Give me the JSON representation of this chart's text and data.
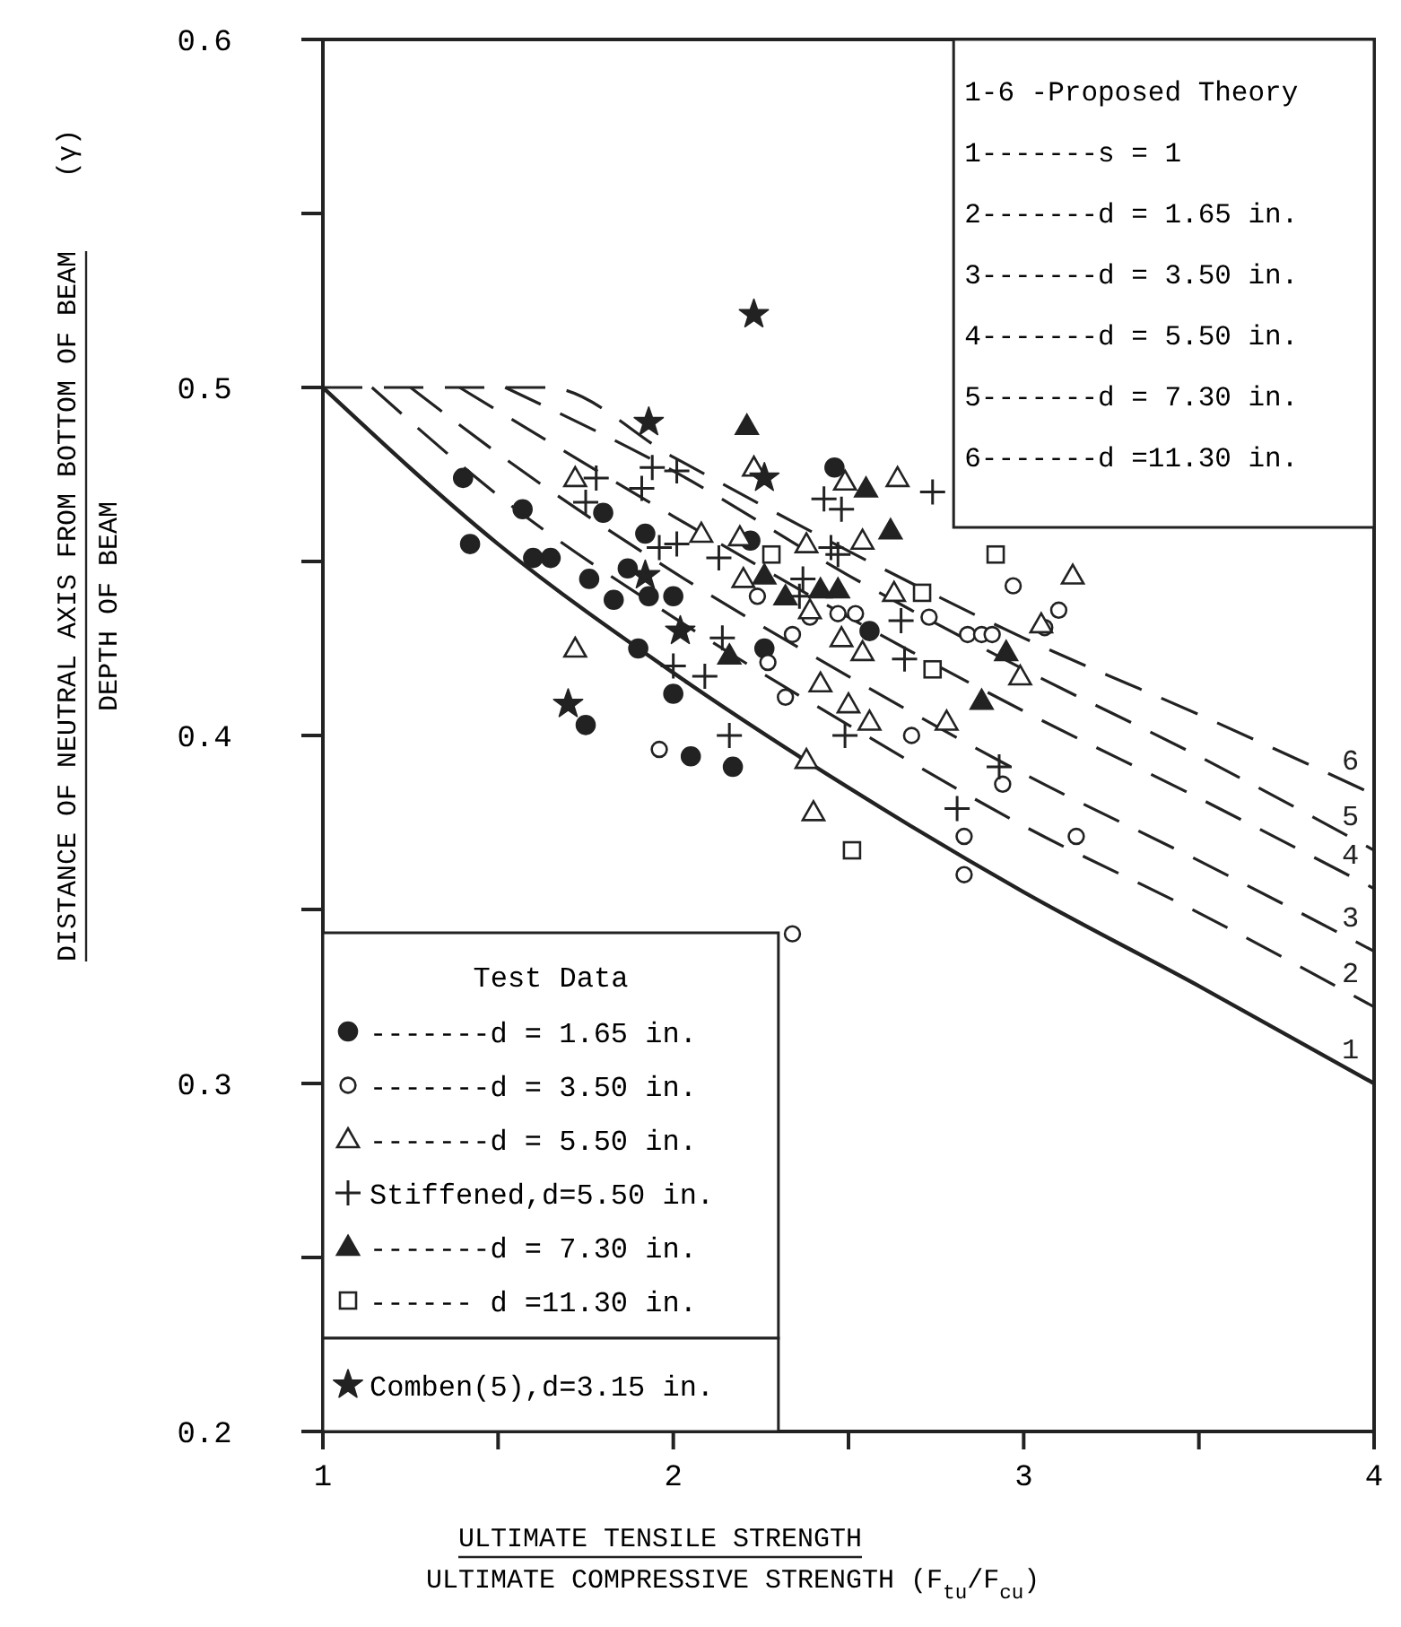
{
  "chart_data": {
    "type": "scatter",
    "xlabel": "ULTIMATE TENSILE STRENGTH\nULTIMATE COMPRESSIVE STRENGTH (F$_{tu}$/F$_{cu}$)",
    "ylabel": "DISTANCE OF NEUTRAL AXIS FROM BOTTOM OF BEAM\nDEPTH OF BEAM (γ)",
    "legend_title": "Test Data",
    "legend": "bottom left",
    "grid": false,
    "xlim": [
      1,
      4
    ],
    "ylim": [
      0.2,
      0.6
    ],
    "xticks": [
      1,
      {
        "value": 1.5,
        "label": null
      },
      2,
      {
        "value": 2.5,
        "label": null
      },
      3,
      {
        "value": 3.5,
        "label": null
      },
      4
    ],
    "yticks": [
      0.2,
      {
        "value": 0.25,
        "label": null
      },
      0.3,
      {
        "value": 0.35,
        "label": null
      },
      0.4,
      {
        "value": 0.45,
        "label": null
      },
      0.5,
      {
        "value": 0.55,
        "label": null
      },
      0.6
    ],
    "annotations": [
      "1-6 -Proposed Theory",
      "1-------s = 1",
      "2-------d = 1.65 in.",
      "3-------d = 3.50 in.",
      "4-------d = 5.50 in.",
      "5-------d = 7.30 in.",
      "6-------d =11.30 in."
    ],
    "series": [
      {
        "type": "line",
        "name": "1",
        "color": "#222222",
        "line_style": "solid",
        "marker": "none",
        "x": [
          1,
          1.5,
          2,
          2.5,
          3,
          3.5,
          4
        ],
        "values": [
          0.5,
          0.455,
          0.418,
          0.385,
          0.355,
          0.328,
          0.3
        ]
      },
      {
        "type": "line",
        "name": "2",
        "color": "#222222",
        "line_style": "dashed",
        "marker": "none",
        "x": [
          1.14,
          1.5,
          2,
          2.5,
          3,
          3.5,
          4
        ],
        "values": [
          0.5,
          0.469,
          0.434,
          0.403,
          0.374,
          0.349,
          0.322
        ]
      },
      {
        "type": "line",
        "name": "3",
        "color": "#222222",
        "line_style": "dashed",
        "marker": "none",
        "x": [
          1.25,
          1.5,
          2,
          2.5,
          3,
          3.5,
          4
        ],
        "values": [
          0.5,
          0.481,
          0.447,
          0.417,
          0.389,
          0.364,
          0.338
        ]
      },
      {
        "type": "line",
        "name": "4",
        "color": "#222222",
        "line_style": "dashed",
        "marker": "none",
        "x": [
          1.39,
          2,
          2.5,
          3,
          3.5,
          4
        ],
        "values": [
          0.5,
          0.463,
          0.434,
          0.407,
          0.382,
          0.356
        ]
      },
      {
        "type": "line",
        "name": "5",
        "color": "#222222",
        "line_style": "dashed",
        "marker": "none",
        "x": [
          1.52,
          2,
          2.5,
          3,
          3.5,
          4
        ],
        "values": [
          0.5,
          0.476,
          0.446,
          0.419,
          0.394,
          0.367
        ]
      },
      {
        "type": "line",
        "name": "6",
        "color": "#222222",
        "line_style": "dashed",
        "marker": "none",
        "x": [
          1,
          1.64,
          2,
          2.5,
          3,
          3.5,
          4
        ],
        "values": [
          0.5,
          0.5,
          0.48,
          0.453,
          0.428,
          0.406,
          0.383
        ]
      },
      {
        "name": "-------d = 1.65 in.",
        "color": "#222222",
        "marker": "circle",
        "x": [
          1.4,
          1.42,
          1.57,
          1.6,
          1.65,
          1.8,
          1.92,
          1.76,
          1.83,
          1.87,
          1.93,
          2.0,
          1.9,
          2.0,
          1.75,
          2.05,
          2.17,
          2.26,
          2.22,
          2.46,
          2.56
        ],
        "values": [
          0.474,
          0.455,
          0.465,
          0.451,
          0.451,
          0.464,
          0.458,
          0.445,
          0.439,
          0.448,
          0.44,
          0.44,
          0.425,
          0.412,
          0.403,
          0.394,
          0.391,
          0.425,
          0.456,
          0.477,
          0.43
        ]
      },
      {
        "name": "-------d = 3.50 in.",
        "color": "#ffffff",
        "marker": "circle",
        "x": [
          2.24,
          2.34,
          2.39,
          2.27,
          2.32,
          1.96,
          2.47,
          2.52,
          2.73,
          2.84,
          2.88,
          2.91,
          2.97,
          3.1,
          3.06,
          2.68,
          2.94,
          2.83,
          3.15,
          2.83,
          2.34
        ],
        "values": [
          0.44,
          0.429,
          0.434,
          0.421,
          0.411,
          0.396,
          0.435,
          0.435,
          0.434,
          0.429,
          0.429,
          0.429,
          0.443,
          0.436,
          0.431,
          0.4,
          0.386,
          0.371,
          0.371,
          0.36,
          0.343
        ]
      },
      {
        "name": "-------d = 5.50 in.",
        "color": "#ffffff",
        "marker": "triangle",
        "x": [
          1.72,
          2.08,
          2.19,
          2.2,
          1.72,
          2.42,
          2.38,
          2.4,
          2.23,
          2.38,
          2.49,
          2.64,
          2.54,
          2.39,
          2.48,
          2.54,
          2.63,
          2.5,
          2.56,
          2.78,
          2.99,
          3.05,
          3.14
        ],
        "values": [
          0.474,
          0.458,
          0.457,
          0.445,
          0.425,
          0.415,
          0.393,
          0.378,
          0.477,
          0.455,
          0.473,
          0.474,
          0.456,
          0.436,
          0.428,
          0.424,
          0.441,
          0.409,
          0.404,
          0.404,
          0.417,
          0.432,
          0.446
        ]
      },
      {
        "name": "Stiffened,d=5.50 in.",
        "color": "#222222",
        "marker": "cross",
        "x": [
          1.78,
          1.75,
          1.94,
          2.01,
          1.91,
          1.96,
          2.01,
          2.13,
          2.0,
          2.09,
          2.14,
          2.16,
          2.37,
          2.36,
          2.43,
          2.48,
          2.74,
          2.45,
          2.47,
          2.65,
          2.66,
          2.49,
          2.93,
          2.81
        ],
        "values": [
          0.474,
          0.467,
          0.477,
          0.476,
          0.471,
          0.454,
          0.455,
          0.451,
          0.42,
          0.417,
          0.428,
          0.4,
          0.445,
          0.44,
          0.468,
          0.465,
          0.47,
          0.454,
          0.452,
          0.433,
          0.422,
          0.4,
          0.391,
          0.379
        ]
      },
      {
        "name": "-------d = 7.30 in.",
        "color": "#222222",
        "marker": "triangle",
        "x": [
          2.21,
          2.26,
          2.16,
          2.32,
          2.55,
          2.62,
          2.42,
          2.47,
          2.95,
          2.88
        ],
        "values": [
          0.489,
          0.446,
          0.423,
          0.44,
          0.471,
          0.459,
          0.442,
          0.442,
          0.424,
          0.41
        ]
      },
      {
        "name": "------ d =11.30 in.",
        "color": "#ffffff",
        "marker": "square",
        "x": [
          2.28,
          2.71,
          2.74,
          2.92,
          2.51
        ],
        "values": [
          0.452,
          0.441,
          0.419,
          0.452,
          0.367
        ]
      },
      {
        "name": "Comben(5),d=3.15 in.",
        "color": "#222222",
        "marker": "star",
        "x": [
          2.23,
          1.93,
          2.26,
          2.02,
          1.7,
          1.92
        ],
        "values": [
          0.521,
          0.49,
          0.474,
          0.43,
          0.409,
          0.446
        ]
      }
    ]
  }
}
